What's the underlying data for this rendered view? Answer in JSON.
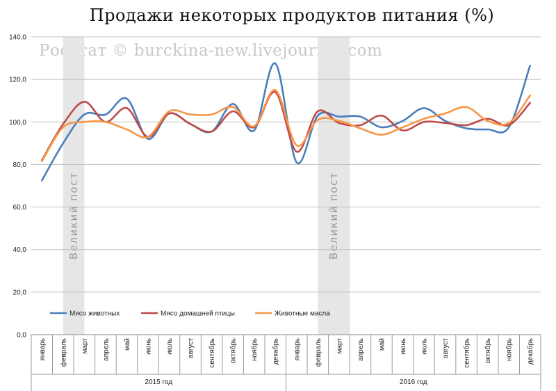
{
  "chart_data": {
    "type": "line",
    "title": "Продажи некоторых продуктов питания (%)",
    "watermark": "Росстат © burckina-new.livejournal.com",
    "ylim": [
      0,
      140
    ],
    "yticks": [
      "0,0",
      "20,0",
      "40,0",
      "60,0",
      "80,0",
      "100,0",
      "120,0",
      "140,0"
    ],
    "categories": [
      "январь",
      "февраль",
      "март",
      "апрель",
      "май",
      "июнь",
      "июль",
      "август",
      "сентябрь",
      "октябрь",
      "ноябрь",
      "декабрь",
      "январь",
      "февраль",
      "март",
      "апрель",
      "май",
      "июнь",
      "июль",
      "август",
      "сентябрь",
      "октябрь",
      "ноябрь",
      "декабрь"
    ],
    "years": [
      {
        "label": "2015 год",
        "start": 0,
        "end": 11
      },
      {
        "label": "2016 год",
        "start": 12,
        "end": 23
      }
    ],
    "bands": [
      {
        "label": "Великий пост",
        "from": 1.5,
        "to": 2.5
      },
      {
        "label": "Великий пост",
        "from": 13.5,
        "to": 15
      }
    ],
    "grid": true,
    "legend_position": "bottom-left",
    "series": [
      {
        "name": "Мясо животных",
        "color": "#4a7ebb",
        "values": [
          72.5,
          90,
          103.5,
          103.5,
          111,
          92,
          104,
          99,
          95.5,
          108.5,
          96,
          127.5,
          81,
          103,
          102.5,
          102.5,
          97.5,
          100.5,
          106.5,
          100.5,
          97,
          96.5,
          97.5,
          126.5
        ]
      },
      {
        "name": "Мясо домашней птицы",
        "color": "#be4b48",
        "values": [
          82,
          99,
          109.5,
          100,
          106.5,
          93,
          104,
          99,
          95.5,
          105,
          97.5,
          114,
          86,
          105,
          99.5,
          98.5,
          103,
          96,
          100,
          99.5,
          98.5,
          101.5,
          98.5,
          109
        ]
      },
      {
        "name": "Животные масла",
        "color": "#f79646",
        "values": [
          81.5,
          97.5,
          100,
          100,
          96.5,
          93,
          105,
          103.5,
          103.5,
          107,
          98,
          115,
          89,
          101,
          100.5,
          97,
          94,
          97.5,
          101.5,
          104,
          107,
          100.5,
          99.5,
          112.5
        ]
      }
    ]
  }
}
